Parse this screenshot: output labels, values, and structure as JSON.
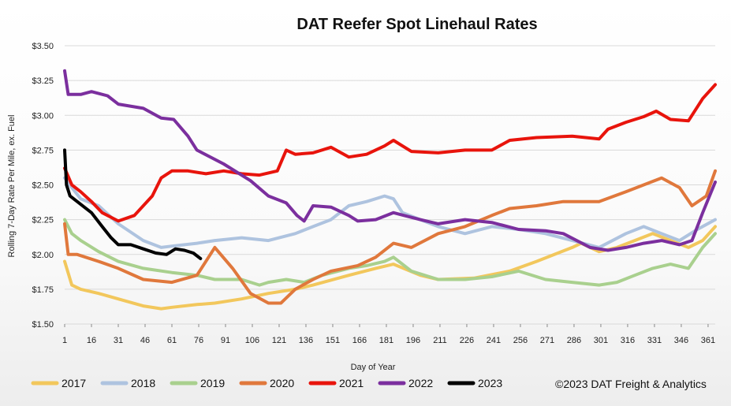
{
  "chart_data": {
    "type": "line",
    "title": "DAT Reefer Spot Linehaul Rates",
    "xlabel": "Day of Year",
    "ylabel": "Rolling 7-Day Rate Per Mile, ex. Fuel",
    "xlim": [
      1,
      365
    ],
    "ylim": [
      1.5,
      3.5
    ],
    "x_ticks": [
      1,
      16,
      31,
      46,
      61,
      76,
      91,
      106,
      121,
      136,
      151,
      166,
      181,
      196,
      211,
      226,
      241,
      256,
      271,
      286,
      301,
      316,
      331,
      346,
      361
    ],
    "y_ticks": [
      {
        "value": 1.5,
        "label": "$1.50"
      },
      {
        "value": 1.75,
        "label": "$1.75"
      },
      {
        "value": 2.0,
        "label": "$2.00"
      },
      {
        "value": 2.25,
        "label": "$2.25"
      },
      {
        "value": 2.5,
        "label": "$2.50"
      },
      {
        "value": 2.75,
        "label": "$2.75"
      },
      {
        "value": 3.0,
        "label": "$3.00"
      },
      {
        "value": 3.25,
        "label": "$3.25"
      },
      {
        "value": 3.5,
        "label": "$3.50"
      }
    ],
    "grid": true,
    "legend_position": "bottom",
    "series": [
      {
        "name": "2017",
        "color": "#f2c75c",
        "x": [
          1,
          5,
          10,
          20,
          31,
          45,
          55,
          61,
          75,
          85,
          100,
          115,
          130,
          140,
          160,
          175,
          185,
          200,
          210,
          230,
          250,
          265,
          275,
          285,
          290,
          300,
          310,
          320,
          330,
          340,
          350,
          358,
          365
        ],
        "y": [
          1.95,
          1.78,
          1.75,
          1.72,
          1.68,
          1.63,
          1.61,
          1.62,
          1.64,
          1.65,
          1.68,
          1.72,
          1.75,
          1.78,
          1.85,
          1.9,
          1.93,
          1.85,
          1.82,
          1.83,
          1.88,
          1.95,
          2.0,
          2.05,
          2.08,
          2.02,
          2.05,
          2.1,
          2.15,
          2.1,
          2.05,
          2.1,
          2.2
        ]
      },
      {
        "name": "2018",
        "color": "#aec3df",
        "x": [
          1,
          5,
          10,
          20,
          31,
          45,
          55,
          61,
          75,
          85,
          100,
          115,
          130,
          140,
          150,
          160,
          170,
          180,
          185,
          190,
          200,
          210,
          225,
          240,
          255,
          270,
          285,
          300,
          315,
          325,
          335,
          345,
          355,
          365
        ],
        "y": [
          2.55,
          2.48,
          2.4,
          2.35,
          2.22,
          2.1,
          2.05,
          2.06,
          2.08,
          2.1,
          2.12,
          2.1,
          2.15,
          2.2,
          2.25,
          2.35,
          2.38,
          2.42,
          2.4,
          2.3,
          2.25,
          2.2,
          2.15,
          2.2,
          2.18,
          2.15,
          2.1,
          2.05,
          2.15,
          2.2,
          2.15,
          2.1,
          2.18,
          2.25
        ]
      },
      {
        "name": "2019",
        "color": "#a9d08e",
        "x": [
          1,
          5,
          10,
          20,
          31,
          45,
          61,
          75,
          85,
          100,
          110,
          115,
          125,
          135,
          145,
          160,
          170,
          180,
          185,
          195,
          210,
          225,
          240,
          255,
          270,
          285,
          300,
          310,
          320,
          330,
          340,
          350,
          358,
          365
        ],
        "y": [
          2.25,
          2.15,
          2.1,
          2.02,
          1.95,
          1.9,
          1.87,
          1.85,
          1.82,
          1.82,
          1.78,
          1.8,
          1.82,
          1.8,
          1.85,
          1.9,
          1.92,
          1.95,
          1.98,
          1.88,
          1.82,
          1.82,
          1.84,
          1.88,
          1.82,
          1.8,
          1.78,
          1.8,
          1.85,
          1.9,
          1.93,
          1.9,
          2.05,
          2.15
        ]
      },
      {
        "name": "2020",
        "color": "#e0783c",
        "x": [
          1,
          3,
          8,
          20,
          31,
          45,
          61,
          75,
          80,
          85,
          95,
          105,
          115,
          122,
          130,
          140,
          150,
          165,
          175,
          185,
          195,
          210,
          225,
          240,
          250,
          265,
          280,
          300,
          315,
          325,
          335,
          345,
          352,
          360,
          365
        ],
        "y": [
          2.22,
          2.0,
          2.0,
          1.95,
          1.9,
          1.82,
          1.8,
          1.85,
          1.95,
          2.05,
          1.9,
          1.72,
          1.65,
          1.65,
          1.75,
          1.82,
          1.88,
          1.92,
          1.98,
          2.08,
          2.05,
          2.15,
          2.2,
          2.28,
          2.33,
          2.35,
          2.38,
          2.38,
          2.45,
          2.5,
          2.55,
          2.48,
          2.35,
          2.42,
          2.6
        ]
      },
      {
        "name": "2021",
        "color": "#e8140c",
        "x": [
          1,
          5,
          10,
          16,
          22,
          31,
          40,
          50,
          55,
          61,
          70,
          80,
          90,
          100,
          110,
          120,
          125,
          130,
          140,
          150,
          160,
          170,
          180,
          185,
          195,
          210,
          225,
          240,
          250,
          265,
          285,
          300,
          305,
          315,
          325,
          332,
          340,
          350,
          358,
          365
        ],
        "y": [
          2.62,
          2.5,
          2.45,
          2.38,
          2.3,
          2.24,
          2.28,
          2.42,
          2.55,
          2.6,
          2.6,
          2.58,
          2.6,
          2.58,
          2.57,
          2.6,
          2.75,
          2.72,
          2.73,
          2.77,
          2.7,
          2.72,
          2.78,
          2.82,
          2.74,
          2.73,
          2.75,
          2.75,
          2.82,
          2.84,
          2.85,
          2.83,
          2.9,
          2.95,
          2.99,
          3.03,
          2.97,
          2.96,
          3.12,
          3.22
        ]
      },
      {
        "name": "2022",
        "color": "#7b2f9e",
        "x": [
          1,
          3,
          10,
          16,
          25,
          31,
          45,
          55,
          62,
          70,
          75,
          90,
          105,
          115,
          125,
          131,
          135,
          140,
          150,
          160,
          165,
          175,
          185,
          200,
          210,
          225,
          240,
          255,
          270,
          280,
          295,
          305,
          315,
          325,
          335,
          345,
          352,
          358,
          365
        ],
        "y": [
          3.32,
          3.15,
          3.15,
          3.17,
          3.14,
          3.08,
          3.05,
          2.98,
          2.97,
          2.85,
          2.75,
          2.65,
          2.53,
          2.42,
          2.37,
          2.28,
          2.24,
          2.35,
          2.34,
          2.28,
          2.24,
          2.25,
          2.3,
          2.25,
          2.22,
          2.25,
          2.23,
          2.18,
          2.17,
          2.15,
          2.05,
          2.03,
          2.05,
          2.08,
          2.1,
          2.07,
          2.1,
          2.3,
          2.52
        ]
      },
      {
        "name": "2023",
        "color": "#000000",
        "x": [
          1,
          2,
          4,
          8,
          16,
          22,
          27,
          31,
          38,
          45,
          52,
          58,
          63,
          68,
          73,
          77
        ],
        "y": [
          2.75,
          2.5,
          2.42,
          2.38,
          2.3,
          2.2,
          2.12,
          2.07,
          2.07,
          2.04,
          2.01,
          2.0,
          2.04,
          2.03,
          2.01,
          1.97
        ]
      }
    ]
  },
  "footer": {
    "copyright": "©2023 DAT Freight & Analytics"
  }
}
